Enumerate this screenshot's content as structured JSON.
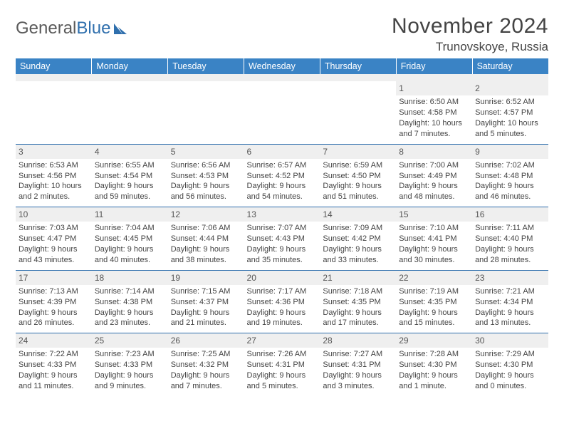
{
  "brand": {
    "part1": "General",
    "part2": "Blue"
  },
  "title": "November 2024",
  "location": "Trunovskoye, Russia",
  "colors": {
    "header_bg": "#3a83c5",
    "rule": "#2f6fad",
    "daybar": "#efefef",
    "text": "#444444"
  },
  "dow": [
    "Sunday",
    "Monday",
    "Tuesday",
    "Wednesday",
    "Thursday",
    "Friday",
    "Saturday"
  ],
  "weeks": [
    [
      null,
      null,
      null,
      null,
      null,
      {
        "n": "1",
        "sr": "Sunrise: 6:50 AM",
        "ss": "Sunset: 4:58 PM",
        "d1": "Daylight: 10 hours",
        "d2": "and 7 minutes."
      },
      {
        "n": "2",
        "sr": "Sunrise: 6:52 AM",
        "ss": "Sunset: 4:57 PM",
        "d1": "Daylight: 10 hours",
        "d2": "and 5 minutes."
      }
    ],
    [
      {
        "n": "3",
        "sr": "Sunrise: 6:53 AM",
        "ss": "Sunset: 4:56 PM",
        "d1": "Daylight: 10 hours",
        "d2": "and 2 minutes."
      },
      {
        "n": "4",
        "sr": "Sunrise: 6:55 AM",
        "ss": "Sunset: 4:54 PM",
        "d1": "Daylight: 9 hours",
        "d2": "and 59 minutes."
      },
      {
        "n": "5",
        "sr": "Sunrise: 6:56 AM",
        "ss": "Sunset: 4:53 PM",
        "d1": "Daylight: 9 hours",
        "d2": "and 56 minutes."
      },
      {
        "n": "6",
        "sr": "Sunrise: 6:57 AM",
        "ss": "Sunset: 4:52 PM",
        "d1": "Daylight: 9 hours",
        "d2": "and 54 minutes."
      },
      {
        "n": "7",
        "sr": "Sunrise: 6:59 AM",
        "ss": "Sunset: 4:50 PM",
        "d1": "Daylight: 9 hours",
        "d2": "and 51 minutes."
      },
      {
        "n": "8",
        "sr": "Sunrise: 7:00 AM",
        "ss": "Sunset: 4:49 PM",
        "d1": "Daylight: 9 hours",
        "d2": "and 48 minutes."
      },
      {
        "n": "9",
        "sr": "Sunrise: 7:02 AM",
        "ss": "Sunset: 4:48 PM",
        "d1": "Daylight: 9 hours",
        "d2": "and 46 minutes."
      }
    ],
    [
      {
        "n": "10",
        "sr": "Sunrise: 7:03 AM",
        "ss": "Sunset: 4:47 PM",
        "d1": "Daylight: 9 hours",
        "d2": "and 43 minutes."
      },
      {
        "n": "11",
        "sr": "Sunrise: 7:04 AM",
        "ss": "Sunset: 4:45 PM",
        "d1": "Daylight: 9 hours",
        "d2": "and 40 minutes."
      },
      {
        "n": "12",
        "sr": "Sunrise: 7:06 AM",
        "ss": "Sunset: 4:44 PM",
        "d1": "Daylight: 9 hours",
        "d2": "and 38 minutes."
      },
      {
        "n": "13",
        "sr": "Sunrise: 7:07 AM",
        "ss": "Sunset: 4:43 PM",
        "d1": "Daylight: 9 hours",
        "d2": "and 35 minutes."
      },
      {
        "n": "14",
        "sr": "Sunrise: 7:09 AM",
        "ss": "Sunset: 4:42 PM",
        "d1": "Daylight: 9 hours",
        "d2": "and 33 minutes."
      },
      {
        "n": "15",
        "sr": "Sunrise: 7:10 AM",
        "ss": "Sunset: 4:41 PM",
        "d1": "Daylight: 9 hours",
        "d2": "and 30 minutes."
      },
      {
        "n": "16",
        "sr": "Sunrise: 7:11 AM",
        "ss": "Sunset: 4:40 PM",
        "d1": "Daylight: 9 hours",
        "d2": "and 28 minutes."
      }
    ],
    [
      {
        "n": "17",
        "sr": "Sunrise: 7:13 AM",
        "ss": "Sunset: 4:39 PM",
        "d1": "Daylight: 9 hours",
        "d2": "and 26 minutes."
      },
      {
        "n": "18",
        "sr": "Sunrise: 7:14 AM",
        "ss": "Sunset: 4:38 PM",
        "d1": "Daylight: 9 hours",
        "d2": "and 23 minutes."
      },
      {
        "n": "19",
        "sr": "Sunrise: 7:15 AM",
        "ss": "Sunset: 4:37 PM",
        "d1": "Daylight: 9 hours",
        "d2": "and 21 minutes."
      },
      {
        "n": "20",
        "sr": "Sunrise: 7:17 AM",
        "ss": "Sunset: 4:36 PM",
        "d1": "Daylight: 9 hours",
        "d2": "and 19 minutes."
      },
      {
        "n": "21",
        "sr": "Sunrise: 7:18 AM",
        "ss": "Sunset: 4:35 PM",
        "d1": "Daylight: 9 hours",
        "d2": "and 17 minutes."
      },
      {
        "n": "22",
        "sr": "Sunrise: 7:19 AM",
        "ss": "Sunset: 4:35 PM",
        "d1": "Daylight: 9 hours",
        "d2": "and 15 minutes."
      },
      {
        "n": "23",
        "sr": "Sunrise: 7:21 AM",
        "ss": "Sunset: 4:34 PM",
        "d1": "Daylight: 9 hours",
        "d2": "and 13 minutes."
      }
    ],
    [
      {
        "n": "24",
        "sr": "Sunrise: 7:22 AM",
        "ss": "Sunset: 4:33 PM",
        "d1": "Daylight: 9 hours",
        "d2": "and 11 minutes."
      },
      {
        "n": "25",
        "sr": "Sunrise: 7:23 AM",
        "ss": "Sunset: 4:33 PM",
        "d1": "Daylight: 9 hours",
        "d2": "and 9 minutes."
      },
      {
        "n": "26",
        "sr": "Sunrise: 7:25 AM",
        "ss": "Sunset: 4:32 PM",
        "d1": "Daylight: 9 hours",
        "d2": "and 7 minutes."
      },
      {
        "n": "27",
        "sr": "Sunrise: 7:26 AM",
        "ss": "Sunset: 4:31 PM",
        "d1": "Daylight: 9 hours",
        "d2": "and 5 minutes."
      },
      {
        "n": "28",
        "sr": "Sunrise: 7:27 AM",
        "ss": "Sunset: 4:31 PM",
        "d1": "Daylight: 9 hours",
        "d2": "and 3 minutes."
      },
      {
        "n": "29",
        "sr": "Sunrise: 7:28 AM",
        "ss": "Sunset: 4:30 PM",
        "d1": "Daylight: 9 hours",
        "d2": "and 1 minute."
      },
      {
        "n": "30",
        "sr": "Sunrise: 7:29 AM",
        "ss": "Sunset: 4:30 PM",
        "d1": "Daylight: 9 hours",
        "d2": "and 0 minutes."
      }
    ]
  ]
}
